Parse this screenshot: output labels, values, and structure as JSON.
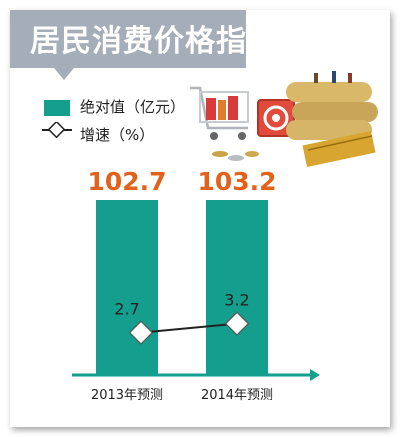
{
  "title": "居民消费价格指数",
  "legend": {
    "bar_label": "绝对值（亿元）",
    "line_label": "增速（%）"
  },
  "colors": {
    "bar": "#139e8d",
    "bar_value": "#e2621b",
    "axis": "#139e8d",
    "title_bg": "#a5adb8"
  },
  "chart_data": {
    "type": "bar",
    "categories": [
      "2013年预测",
      "2014年预测"
    ],
    "series": [
      {
        "name": "绝对值（亿元）",
        "type": "bar",
        "values": [
          102.7,
          103.2
        ],
        "labels": [
          "102.7",
          "103.2"
        ]
      },
      {
        "name": "增速（%）",
        "type": "line",
        "values": [
          2.7,
          3.2
        ],
        "labels": [
          "2.7",
          "3.2"
        ]
      }
    ]
  }
}
